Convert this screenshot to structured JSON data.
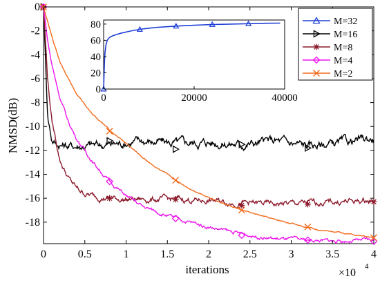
{
  "chart_data": [
    {
      "type": "line",
      "xlabel": "iterations",
      "ylabel": "NMSD(dB)",
      "x_multiplier_label": "×10",
      "x_multiplier_exp": "4",
      "xlim": [
        0,
        40000
      ],
      "ylim": [
        -19.8,
        0
      ],
      "x_ticks": [
        0,
        5000,
        10000,
        15000,
        20000,
        25000,
        30000,
        35000,
        40000
      ],
      "x_tick_labels": [
        "0",
        "0.5",
        "1",
        "1.5",
        "2",
        "2.5",
        "3",
        "3.5",
        "4"
      ],
      "y_ticks": [
        0,
        -2,
        -4,
        -6,
        -8,
        -10,
        -12,
        -14,
        -16,
        -18
      ],
      "y_tick_labels": [
        "0",
        "-2",
        "-4",
        "-6",
        "-8",
        "-10",
        "-12",
        "-14",
        "-16",
        "-18"
      ],
      "legend_position": "top-right",
      "grid": false,
      "series": [
        {
          "name": "M=32",
          "color": "#1f3fd6",
          "marker": "triangle",
          "plotted_in_main": false,
          "x": [
            0
          ],
          "y": [
            0
          ]
        },
        {
          "name": "M=16",
          "color": "#000000",
          "marker": "right-triangle",
          "noise": 0.45,
          "x": [
            0,
            500,
            1000,
            1500,
            2000,
            3000,
            5000,
            8000,
            12000,
            16000,
            20000,
            24000,
            28000,
            32000,
            36000,
            40000
          ],
          "y": [
            0,
            -9.0,
            -11.0,
            -11.4,
            -11.5,
            -11.6,
            -11.6,
            -11.5,
            -11.2,
            -11.4,
            -11.3,
            -11.5,
            -11.2,
            -11.6,
            -11.4,
            -11.0
          ],
          "marker_x": [
            0,
            8000,
            16000,
            24000,
            32000
          ],
          "marker_y": [
            0,
            -11.2,
            -11.9,
            -11.5,
            -11.8
          ]
        },
        {
          "name": "M=8",
          "color": "#8b1a2b",
          "marker": "asterisk",
          "noise": 0.3,
          "x": [
            0,
            500,
            1000,
            2000,
            3000,
            4000,
            5000,
            6000,
            8000,
            10000,
            12000,
            16000,
            20000,
            24000,
            28000,
            32000,
            36000,
            40000
          ],
          "y": [
            0,
            -6.0,
            -9.5,
            -12.8,
            -14.3,
            -15.2,
            -15.6,
            -15.8,
            -16.0,
            -16.1,
            -16.1,
            -16.1,
            -16.2,
            -16.4,
            -16.5,
            -16.4,
            -16.3,
            -16.2
          ],
          "marker_x": [
            0,
            8000,
            16000,
            24000,
            32000,
            40000
          ],
          "marker_y": [
            0,
            -16.0,
            -16.1,
            -16.6,
            -16.5,
            -16.3
          ]
        },
        {
          "name": "M=4",
          "color": "#ee14ee",
          "marker": "diamond",
          "noise": 0.18,
          "x": [
            0,
            500,
            1000,
            2000,
            3000,
            4000,
            6000,
            8000,
            10000,
            12000,
            14000,
            16000,
            20000,
            24000,
            28000,
            32000,
            36000,
            40000
          ],
          "y": [
            0,
            -2.8,
            -4.8,
            -7.6,
            -9.6,
            -11.0,
            -13.0,
            -14.6,
            -15.8,
            -16.7,
            -17.2,
            -17.7,
            -18.4,
            -19.0,
            -19.4,
            -19.5,
            -19.6,
            -19.5
          ],
          "marker_x": [
            0,
            8000,
            16000,
            24000,
            32000,
            40000
          ],
          "marker_y": [
            0,
            -14.6,
            -17.7,
            -19.1,
            -19.5,
            -19.6
          ]
        },
        {
          "name": "M=2",
          "color": "#f26a1b",
          "marker": "cross",
          "noise": 0.06,
          "x": [
            0,
            1000,
            2000,
            4000,
            6000,
            8000,
            10000,
            12000,
            14000,
            16000,
            18000,
            20000,
            22000,
            24000,
            26000,
            28000,
            30000,
            32000,
            34000,
            36000,
            38000,
            40000
          ],
          "y": [
            0,
            -2.5,
            -4.6,
            -7.3,
            -9.0,
            -10.3,
            -11.4,
            -12.6,
            -13.6,
            -14.5,
            -15.3,
            -15.9,
            -16.5,
            -17.0,
            -17.4,
            -17.8,
            -18.1,
            -18.4,
            -18.7,
            -18.9,
            -19.1,
            -19.3
          ],
          "marker_x": [
            0,
            8000,
            16000,
            24000,
            32000,
            40000
          ],
          "marker_y": [
            0,
            -10.4,
            -14.5,
            -17.0,
            -18.4,
            -19.3
          ]
        }
      ]
    },
    {
      "type": "line",
      "xlim": [
        0,
        40000
      ],
      "ylim": [
        0,
        85
      ],
      "x_ticks": [
        0,
        20000,
        40000
      ],
      "x_tick_labels": [
        "0",
        "20000",
        "40000"
      ],
      "y_ticks": [
        0,
        20,
        40,
        60,
        80
      ],
      "y_tick_labels": [
        "0",
        "20",
        "40",
        "60",
        "80"
      ],
      "series": [
        {
          "name": "M=32",
          "color": "#1f3fd6",
          "marker": "triangle",
          "x": [
            0,
            100,
            200,
            300,
            500,
            800,
            1200,
            1600,
            2000,
            3000,
            4000,
            6000,
            8000,
            10000,
            12000,
            16000,
            20000,
            24000,
            28000,
            32000,
            36000,
            39000
          ],
          "y": [
            0,
            20,
            35,
            45,
            54,
            60,
            63,
            64.5,
            65.5,
            67.5,
            69,
            71.5,
            73.5,
            75,
            76,
            77.5,
            78.5,
            79.5,
            80,
            80.5,
            81,
            81.2
          ],
          "marker_x": [
            0,
            8000,
            16000,
            24000,
            32000
          ],
          "marker_y": [
            0,
            73.5,
            77.5,
            79.5,
            80.5
          ]
        }
      ]
    }
  ]
}
